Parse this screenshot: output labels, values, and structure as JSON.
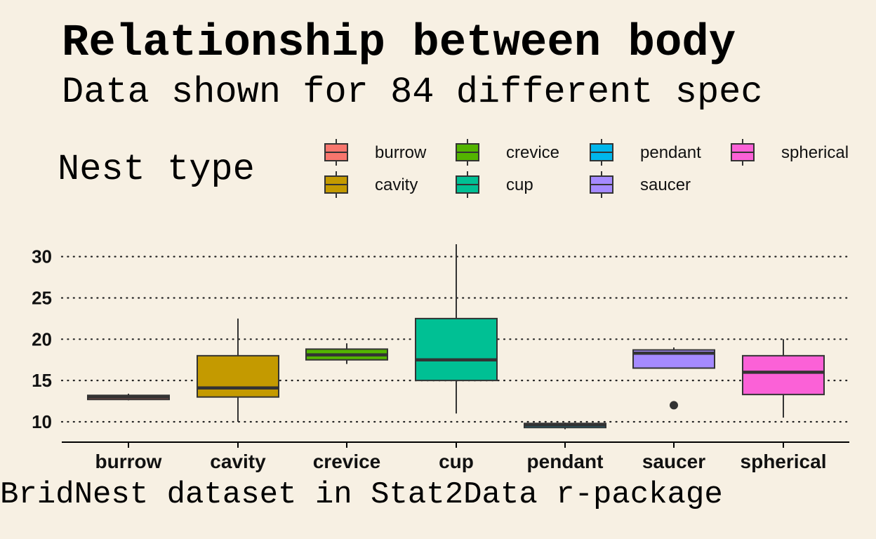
{
  "title": "Relationship between body",
  "subtitle": "Data shown for 84 different spec",
  "caption": "BridNest dataset in Stat2Data r-package",
  "legend": {
    "title": "Nest type",
    "entries": [
      {
        "label": "burrow",
        "color": "#F8766D"
      },
      {
        "label": "cavity",
        "color": "#C49A00"
      },
      {
        "label": "crevice",
        "color": "#53B400"
      },
      {
        "label": "cup",
        "color": "#00C094"
      },
      {
        "label": "pendant",
        "color": "#00B6EB"
      },
      {
        "label": "saucer",
        "color": "#A58AFF"
      },
      {
        "label": "spherical",
        "color": "#FB61D7"
      }
    ]
  },
  "chart_data": {
    "type": "box",
    "categories": [
      "burrow",
      "cavity",
      "crevice",
      "cup",
      "pendant",
      "saucer",
      "spherical"
    ],
    "y_ticks": [
      10,
      15,
      20,
      25,
      30
    ],
    "ylim": [
      8,
      31.5
    ],
    "grid": "horizontal dotted",
    "legend_position": "top",
    "boxes": [
      {
        "category": "burrow",
        "min": 12.6,
        "q1": 12.7,
        "median": 13.0,
        "q3": 13.2,
        "max": 13.4,
        "outliers": []
      },
      {
        "category": "cavity",
        "min": 10.0,
        "q1": 13.0,
        "median": 14.1,
        "q3": 18.0,
        "max": 22.5,
        "outliers": []
      },
      {
        "category": "crevice",
        "min": 17.0,
        "q1": 17.5,
        "median": 18.1,
        "q3": 18.8,
        "max": 19.5,
        "outliers": []
      },
      {
        "category": "cup",
        "min": 11.0,
        "q1": 15.0,
        "median": 17.5,
        "q3": 22.5,
        "max": 31.5,
        "outliers": []
      },
      {
        "category": "pendant",
        "min": 9.1,
        "q1": 9.3,
        "median": 9.6,
        "q3": 9.8,
        "max": 9.9,
        "outliers": []
      },
      {
        "category": "saucer",
        "min": 16.5,
        "q1": 16.5,
        "median": 18.3,
        "q3": 18.7,
        "max": 19.0,
        "outliers": [
          12.0
        ]
      },
      {
        "category": "spherical",
        "min": 10.5,
        "q1": 13.3,
        "median": 16.0,
        "q3": 18.0,
        "max": 20.0,
        "outliers": []
      }
    ]
  }
}
